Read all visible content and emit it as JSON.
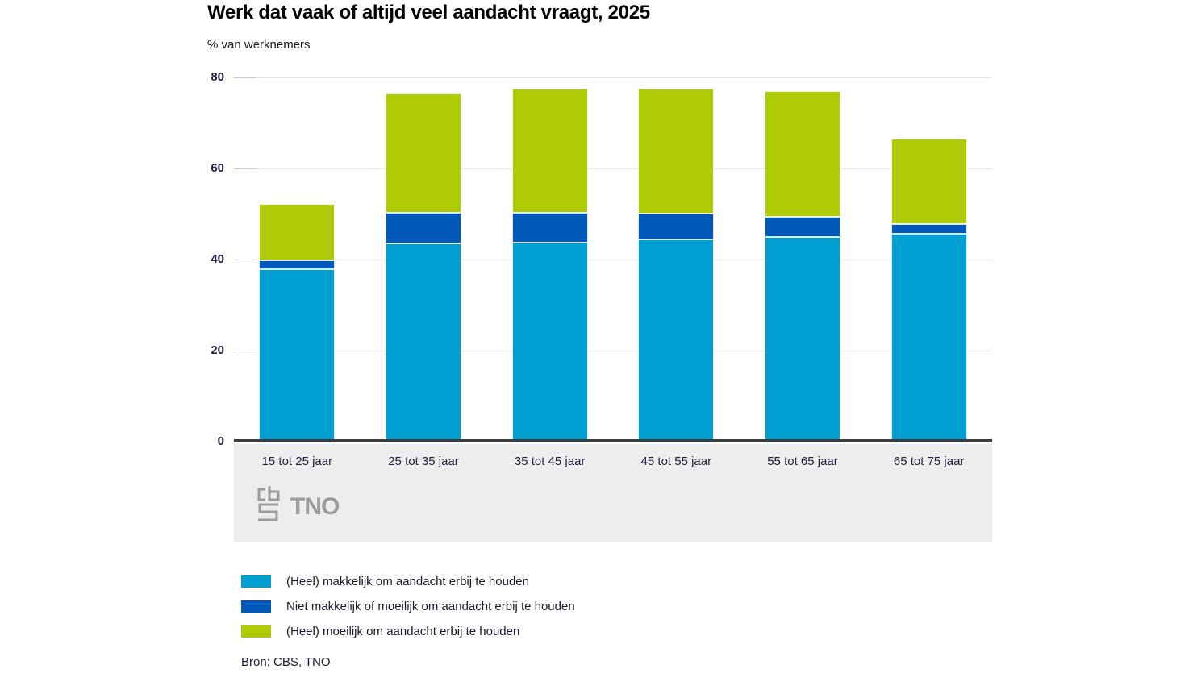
{
  "title": "Werk dat vaak of altijd veel aandacht vraagt, 2025",
  "subtitle": "% van werknemers",
  "source": "Bron: CBS, TNO",
  "logos": {
    "cbs_icon": "cbs-logo",
    "tno_text": "TNO"
  },
  "colors": {
    "light_blue": "#009fd1",
    "dark_blue": "#0058b8",
    "green": "#afcb05",
    "axis": "#3c3c3c",
    "gridline": "#e6e6e6",
    "band_background": "#ededed",
    "logo_gray": "#9b9b9b"
  },
  "chart_data": {
    "type": "bar",
    "stacked": true,
    "title": "Werk dat vaak of altijd veel aandacht vraagt, 2025",
    "xlabel": "",
    "ylabel": "% van werknemers",
    "ylim": [
      0,
      80
    ],
    "yticks": [
      0,
      20,
      40,
      60,
      80
    ],
    "grid": true,
    "legend_position": "bottom",
    "categories": [
      "15 tot 25 jaar",
      "25 tot 35 jaar",
      "35 tot 45 jaar",
      "45 tot 55 jaar",
      "55 tot 65 jaar",
      "65 tot 75 jaar"
    ],
    "series": [
      {
        "name": "(Heel) makkelijk om aandacht erbij te houden",
        "color": "#009fd1",
        "values": [
          37.9,
          43.6,
          43.7,
          44.4,
          44.9,
          45.6
        ]
      },
      {
        "name": "Niet makkelijk of moeilijk om aandacht erbij te houden",
        "color": "#0058b8",
        "values": [
          1.9,
          6.6,
          6.5,
          5.7,
          4.4,
          2.2
        ]
      },
      {
        "name": "(Heel) moeilijk om aandacht erbij te houden",
        "color": "#afcb05",
        "values": [
          12.4,
          26.3,
          27.4,
          27.5,
          27.7,
          18.7
        ]
      }
    ],
    "totals": [
      52.2,
      76.5,
      77.6,
      77.6,
      77.0,
      66.5
    ]
  }
}
